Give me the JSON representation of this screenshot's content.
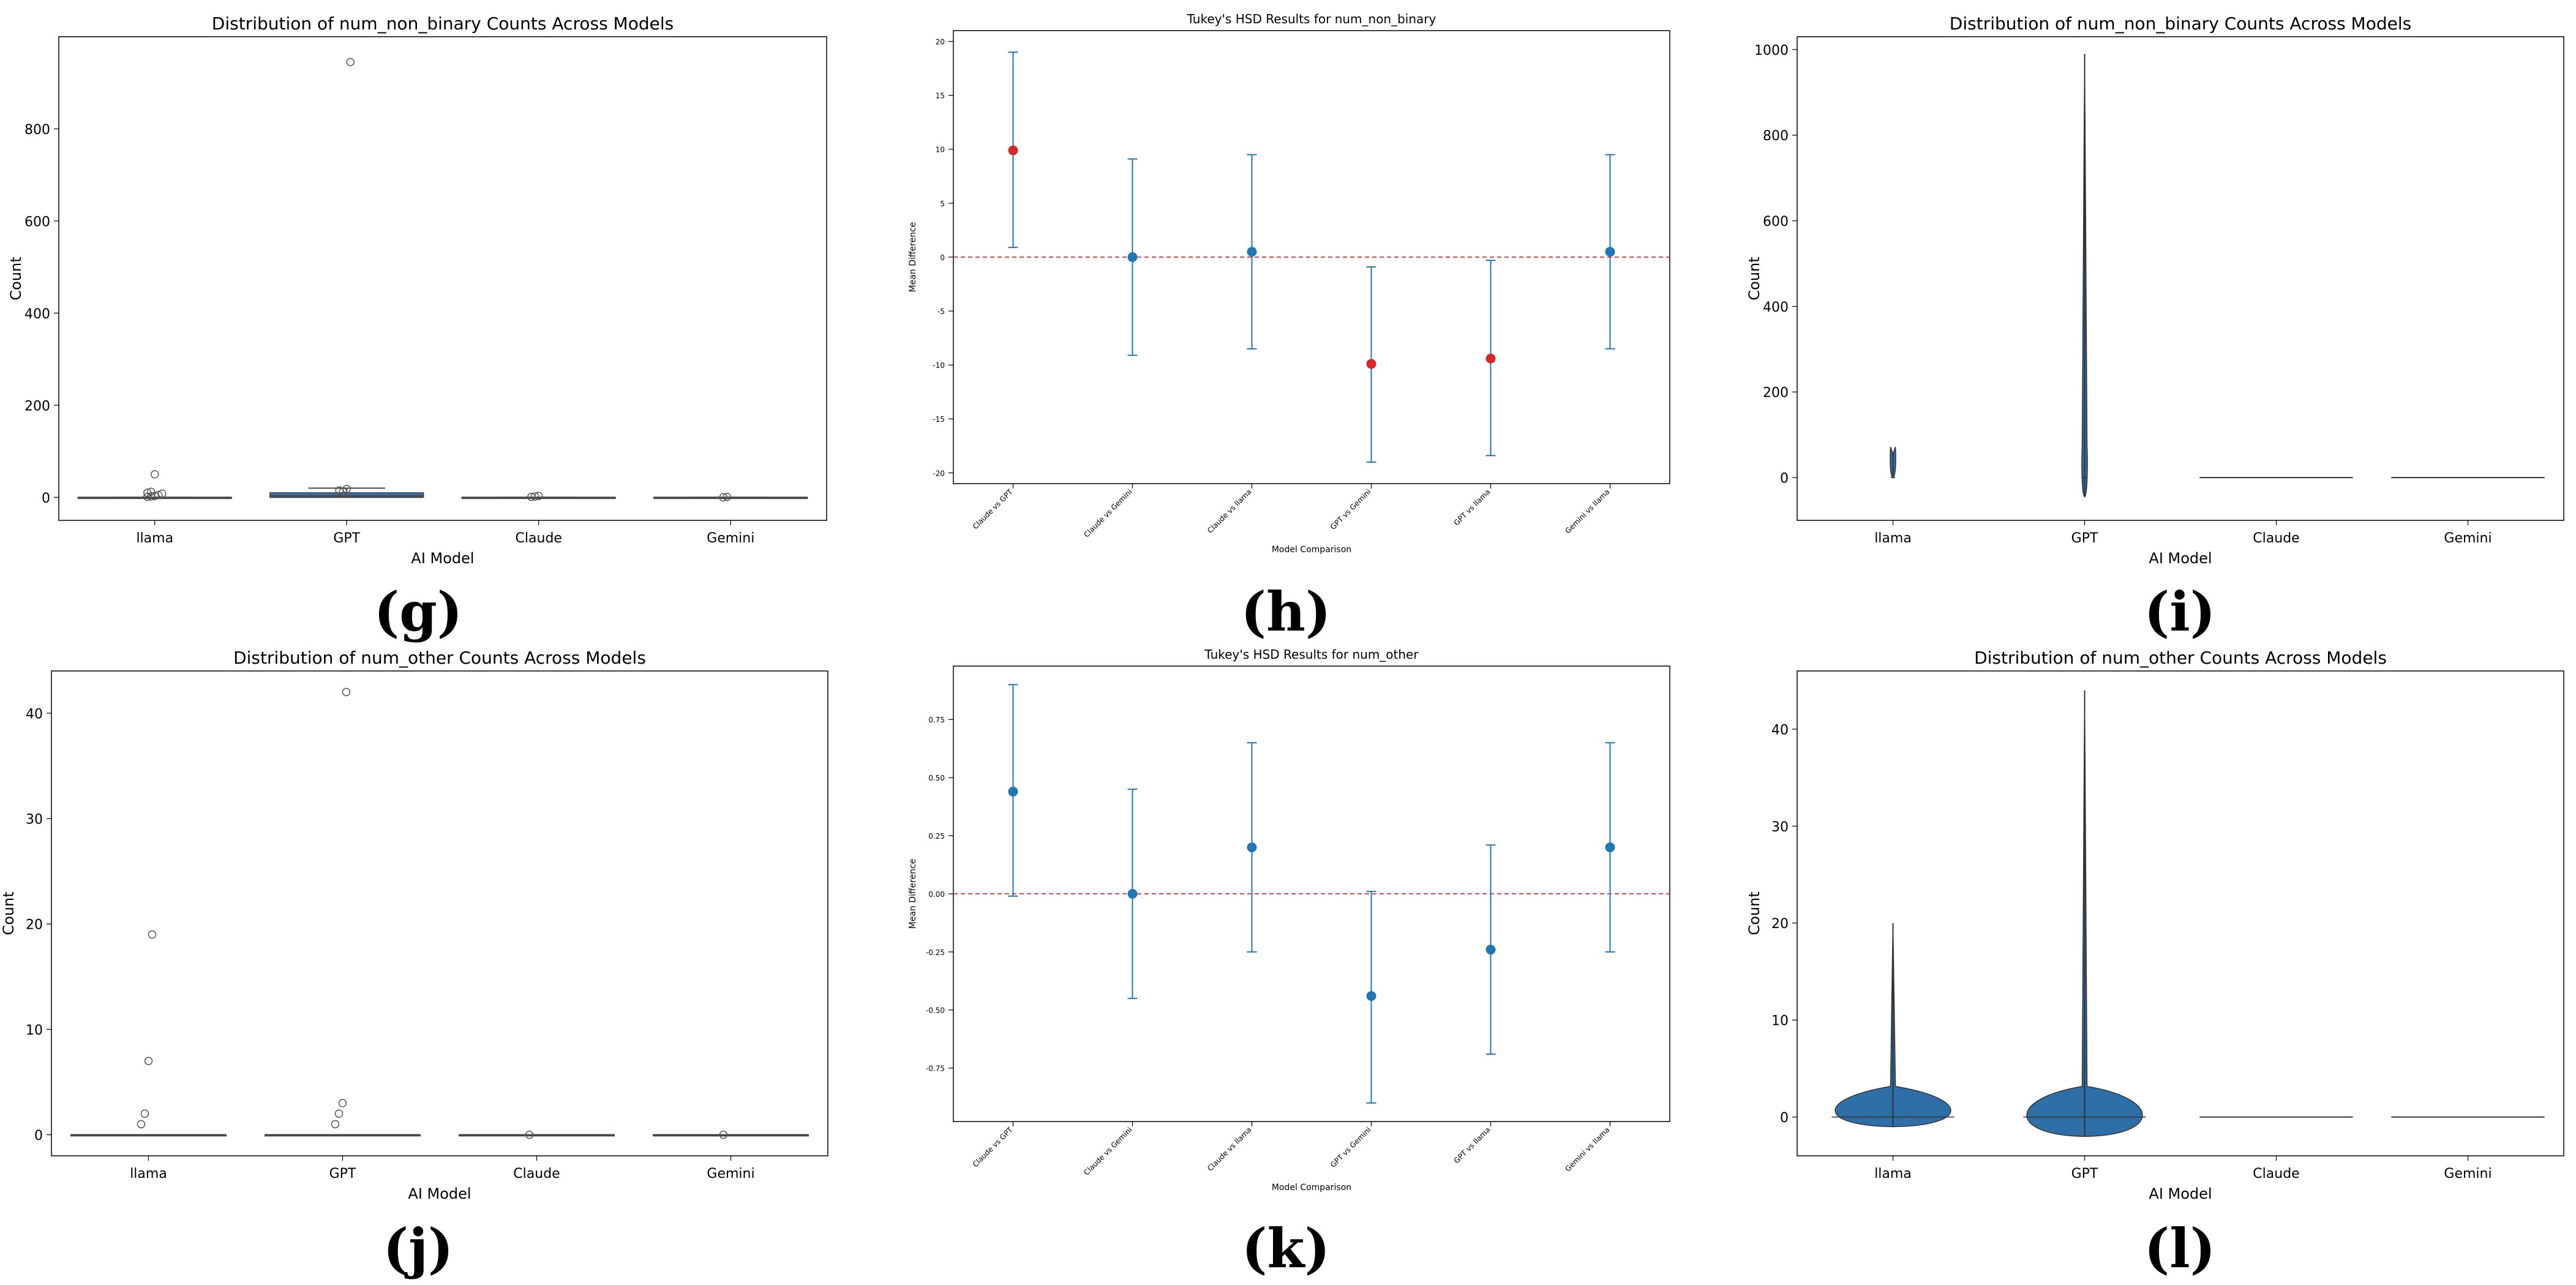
{
  "colors": {
    "box": "#3a6ea5",
    "point_sig": "#d62728",
    "point": "#1f77b4",
    "zero_line": "#e84a4a",
    "violin": "#2e6fa8"
  },
  "chart_data": [
    {
      "panel": "(g)",
      "type": "box",
      "title": "Distribution of num_non_binary Counts Across Models",
      "xlabel": "AI Model",
      "ylabel": "Count",
      "categories": [
        "llama",
        "GPT",
        "Claude",
        "Gemini"
      ],
      "ylim": [
        -50,
        1000
      ],
      "yticks": [
        "0",
        "200",
        "400",
        "600",
        "800"
      ],
      "ytick_values": [
        0,
        200,
        400,
        600,
        800
      ],
      "series": [
        {
          "category": "llama",
          "q1": 0,
          "median": 0,
          "q3": 0,
          "whisker_low": 0,
          "whisker_high": 0,
          "outliers": [
            1,
            2,
            3,
            5,
            8,
            10,
            12,
            50
          ]
        },
        {
          "category": "GPT",
          "q1": 0,
          "median": 3,
          "q3": 10,
          "whisker_low": 0,
          "whisker_high": 20,
          "outliers": [
            15,
            12,
            18,
            945
          ]
        },
        {
          "category": "Claude",
          "q1": 0,
          "median": 0,
          "q3": 0,
          "whisker_low": 0,
          "whisker_high": 0,
          "outliers": [
            1,
            2,
            3
          ]
        },
        {
          "category": "Gemini",
          "q1": 0,
          "median": 0,
          "q3": 0,
          "whisker_low": 0,
          "whisker_high": 0,
          "outliers": [
            0,
            1
          ]
        }
      ]
    },
    {
      "panel": "(h)",
      "type": "errorbar",
      "title": "Tukey's HSD Results for num_non_binary",
      "xlabel": "Model Comparison",
      "ylabel": "Mean Difference",
      "categories": [
        "Claude vs GPT",
        "Claude vs Gemini",
        "Claude vs llama",
        "GPT vs Gemini",
        "GPT vs llama",
        "Gemini vs llama"
      ],
      "ylim": [
        -21,
        21
      ],
      "yticks": [
        "20",
        "15",
        "10",
        "5",
        "0",
        "-5",
        "-10",
        "-15",
        "-20"
      ],
      "ytick_values": [
        20,
        15,
        10,
        5,
        0,
        -5,
        -10,
        -15,
        -20
      ],
      "series": [
        {
          "mean": 9.9,
          "lower": 0.9,
          "upper": 19.0,
          "significant": true
        },
        {
          "mean": 0.0,
          "lower": -9.1,
          "upper": 9.1,
          "significant": false
        },
        {
          "mean": 0.5,
          "lower": -8.5,
          "upper": 9.5,
          "significant": false
        },
        {
          "mean": -9.9,
          "lower": -19.0,
          "upper": -0.9,
          "significant": true
        },
        {
          "mean": -9.4,
          "lower": -18.4,
          "upper": -0.3,
          "significant": true
        },
        {
          "mean": 0.5,
          "lower": -8.5,
          "upper": 9.5,
          "significant": false
        }
      ],
      "reference_line": 0
    },
    {
      "panel": "(i)",
      "type": "violin",
      "title": "Distribution of num_non_binary Counts Across Models",
      "xlabel": "AI Model",
      "ylabel": "Count",
      "categories": [
        "llama",
        "GPT",
        "Claude",
        "Gemini"
      ],
      "ylim": [
        -100,
        1030
      ],
      "yticks": [
        "0",
        "200",
        "400",
        "600",
        "800",
        "1000"
      ],
      "ytick_values": [
        0,
        200,
        400,
        600,
        800,
        1000
      ],
      "series": [
        {
          "category": "llama",
          "min": 0,
          "max": 55
        },
        {
          "category": "GPT",
          "min": -45,
          "max": 990
        },
        {
          "category": "Claude",
          "min": 0,
          "max": 0
        },
        {
          "category": "Gemini",
          "min": 0,
          "max": 0
        }
      ]
    },
    {
      "panel": "(j)",
      "type": "box",
      "title": "Distribution of num_other Counts Across Models",
      "xlabel": "AI Model",
      "ylabel": "Count",
      "categories": [
        "llama",
        "GPT",
        "Claude",
        "Gemini"
      ],
      "ylim": [
        -2,
        44
      ],
      "yticks": [
        "0",
        "10",
        "20",
        "30",
        "40"
      ],
      "ytick_values": [
        0,
        10,
        20,
        30,
        40
      ],
      "series": [
        {
          "category": "llama",
          "q1": 0,
          "median": 0,
          "q3": 0,
          "whisker_low": 0,
          "whisker_high": 0,
          "outliers": [
            1,
            2,
            7,
            19
          ]
        },
        {
          "category": "GPT",
          "q1": 0,
          "median": 0,
          "q3": 0,
          "whisker_low": 0,
          "whisker_high": 0,
          "outliers": [
            1,
            2,
            3,
            42
          ]
        },
        {
          "category": "Claude",
          "q1": 0,
          "median": 0,
          "q3": 0,
          "whisker_low": 0,
          "whisker_high": 0,
          "outliers": [
            0
          ]
        },
        {
          "category": "Gemini",
          "q1": 0,
          "median": 0,
          "q3": 0,
          "whisker_low": 0,
          "whisker_high": 0,
          "outliers": [
            0
          ]
        }
      ]
    },
    {
      "panel": "(k)",
      "type": "errorbar",
      "title": "Tukey's HSD Results for num_other",
      "xlabel": "Model Comparison",
      "ylabel": "Mean Difference",
      "categories": [
        "Claude vs GPT",
        "Claude vs Gemini",
        "Claude vs llama",
        "GPT vs Gemini",
        "GPT vs llama",
        "Gemini vs llama"
      ],
      "ylim": [
        -0.98,
        0.98
      ],
      "yticks": [
        "0.75",
        "0.50",
        "0.25",
        "0.00",
        "-0.25",
        "-0.50",
        "-0.75"
      ],
      "ytick_values": [
        0.75,
        0.5,
        0.25,
        0,
        -0.25,
        -0.5,
        -0.75
      ],
      "series": [
        {
          "mean": 0.44,
          "lower": -0.01,
          "upper": 0.9,
          "significant": false
        },
        {
          "mean": 0.0,
          "lower": -0.45,
          "upper": 0.45,
          "significant": false
        },
        {
          "mean": 0.2,
          "lower": -0.25,
          "upper": 0.65,
          "significant": false
        },
        {
          "mean": -0.44,
          "lower": -0.9,
          "upper": 0.01,
          "significant": false
        },
        {
          "mean": -0.24,
          "lower": -0.69,
          "upper": 0.21,
          "significant": false
        },
        {
          "mean": 0.2,
          "lower": -0.25,
          "upper": 0.65,
          "significant": false
        }
      ],
      "reference_line": 0
    },
    {
      "panel": "(l)",
      "type": "violin",
      "title": "Distribution of num_other Counts Across Models",
      "xlabel": "AI Model",
      "ylabel": "Count",
      "categories": [
        "llama",
        "GPT",
        "Claude",
        "Gemini"
      ],
      "ylim": [
        -4,
        46
      ],
      "yticks": [
        "0",
        "10",
        "20",
        "30",
        "40"
      ],
      "ytick_values": [
        0,
        10,
        20,
        30,
        40
      ],
      "series": [
        {
          "category": "llama",
          "min": -1,
          "max": 20
        },
        {
          "category": "GPT",
          "min": -2,
          "max": 44
        },
        {
          "category": "Claude",
          "min": 0,
          "max": 0
        },
        {
          "category": "Gemini",
          "min": 0,
          "max": 0
        }
      ]
    }
  ]
}
